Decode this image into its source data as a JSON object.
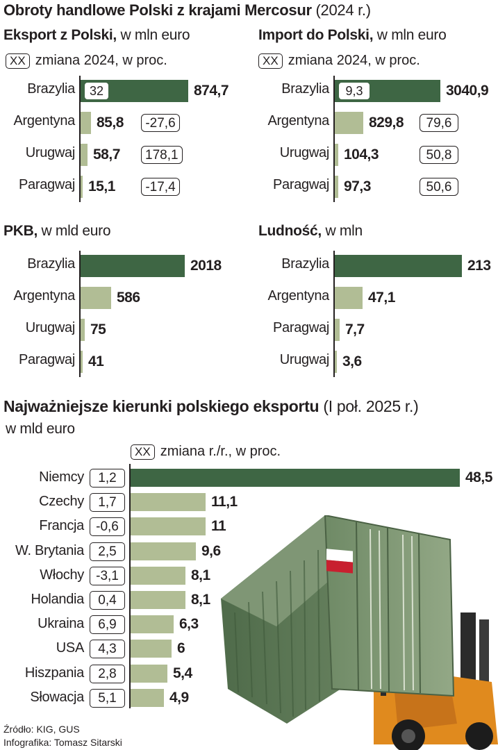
{
  "colors": {
    "primary_bar": "#3e6644",
    "secondary_bar": "#b1bd95",
    "text": "#231f20"
  },
  "title": {
    "bold": "Obroty handlowe Polski z krajami Mercosur",
    "light": "(2024 r.)"
  },
  "legend_xx": "XX",
  "chart_data": [
    {
      "type": "bar",
      "title_bold": "Eksport z Polski,",
      "title_unit": "w mln euro",
      "legend_label": "zmiana 2024, w proc.",
      "categories": [
        "Brazylia",
        "Argentyna",
        "Urugwaj",
        "Paragwaj"
      ],
      "values": [
        874.7,
        85.8,
        58.7,
        15.1
      ],
      "value_labels": [
        "874,7",
        "85,8",
        "58,7",
        "15,1"
      ],
      "changes": [
        "32",
        "-27,6",
        "178,1",
        "-17,4"
      ]
    },
    {
      "type": "bar",
      "title_bold": "Import do Polski,",
      "title_unit": "w mln euro",
      "legend_label": "zmiana 2024, w proc.",
      "categories": [
        "Brazylia",
        "Argentyna",
        "Urugwaj",
        "Paragwaj"
      ],
      "values": [
        3040.9,
        829.8,
        104.3,
        97.3
      ],
      "value_labels": [
        "3040,9",
        "829,8",
        "104,3",
        "97,3"
      ],
      "changes": [
        "9,3",
        "79,6",
        "50,8",
        "50,6"
      ]
    },
    {
      "type": "bar",
      "title_bold": "PKB,",
      "title_unit": "w mld euro",
      "categories": [
        "Brazylia",
        "Argentyna",
        "Urugwaj",
        "Paragwaj"
      ],
      "values": [
        2018,
        586,
        75,
        41
      ],
      "value_labels": [
        "2018",
        "586",
        "75",
        "41"
      ]
    },
    {
      "type": "bar",
      "title_bold": "Ludność,",
      "title_unit": "w mln",
      "categories": [
        "Brazylia",
        "Argentyna",
        "Paragwaj",
        "Urugwaj"
      ],
      "values": [
        213,
        47.1,
        7.7,
        3.6
      ],
      "value_labels": [
        "213",
        "47,1",
        "7,7",
        "3,6"
      ]
    },
    {
      "type": "bar",
      "title_bold": "Najważniejsze kierunki polskiego eksportu",
      "title_light": "(I poł. 2025 r.)",
      "subtitle": "w mld euro",
      "legend_label": "zmiana r./r., w proc.",
      "categories": [
        "Niemcy",
        "Czechy",
        "Francja",
        "W. Brytania",
        "Włochy",
        "Holandia",
        "Ukraina",
        "USA",
        "Hiszpania",
        "Słowacja"
      ],
      "values": [
        48.5,
        11.1,
        11,
        9.6,
        8.1,
        8.1,
        6.3,
        6,
        5.4,
        4.9
      ],
      "value_labels": [
        "48,5",
        "11,1",
        "11",
        "9,6",
        "8,1",
        "8,1",
        "6,3",
        "6",
        "5,4",
        "4,9"
      ],
      "changes": [
        "1,2",
        "1,7",
        "-0,6",
        "2,5",
        "-3,1",
        "0,4",
        "6,9",
        "4,3",
        "2,8",
        "5,1"
      ]
    }
  ],
  "footer": {
    "source": "Źródło: KIG, GUS",
    "author": "Infografika: Tomasz Sitarski"
  },
  "illustration": {
    "icon": "container-forklift-icon"
  }
}
